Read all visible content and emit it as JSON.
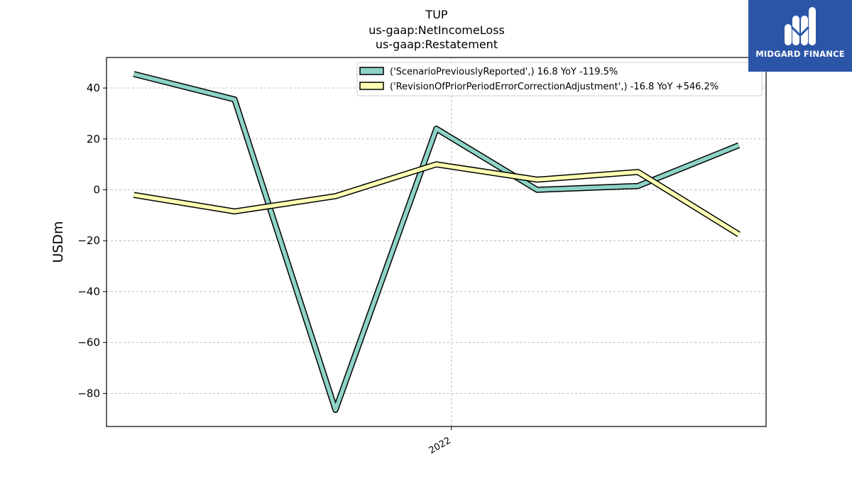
{
  "brand": {
    "name": "MIDGARD FINANCE",
    "bg_color": "#2b56a8",
    "text_color": "#ffffff"
  },
  "chart_data": {
    "type": "line",
    "title_lines": [
      "TUP",
      "us-gaap:NetIncomeLoss",
      "us-gaap:Restatement"
    ],
    "xlabel": "",
    "ylabel": "USDm",
    "x_tick_labels": [
      {
        "label": "2022",
        "x": 3.15
      }
    ],
    "x": [
      0,
      1,
      2,
      3,
      4,
      5,
      6
    ],
    "xlim": [
      -0.27,
      6.27
    ],
    "ylim": [
      -93,
      52
    ],
    "y_ticks": [
      40,
      20,
      0,
      -20,
      -40,
      -60,
      -80
    ],
    "grid": true,
    "legend_position": "top-right",
    "series": [
      {
        "name": "('ScenarioPreviouslyReported',) 16.8 YoY -119.5%",
        "color": "#8dd3c7",
        "values": [
          45.5,
          35.5,
          -86.5,
          24,
          0,
          1.5,
          17.5
        ]
      },
      {
        "name": "('RevisionOfPriorPeriodErrorCorrectionAdjustment',) -16.8 YoY +546.2%",
        "color": "#ffffb3",
        "values": [
          -2,
          -8.5,
          -2.5,
          10,
          4,
          7,
          -17.5
        ]
      }
    ]
  }
}
